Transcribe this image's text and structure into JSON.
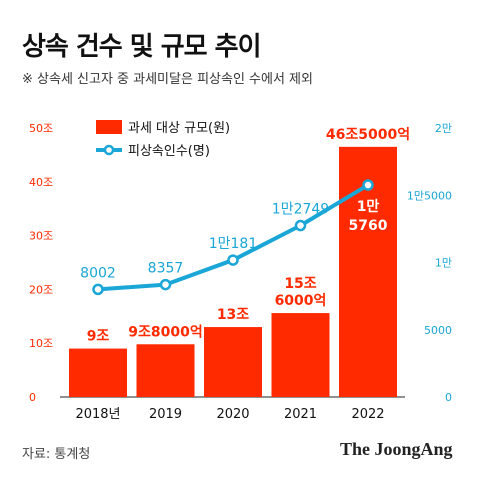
{
  "title": "상속 건수 및 규모 추이",
  "note": "※ 상속세 신고자 중 과세미달은 피상속인 수에서 제외",
  "source": "자료: 통계청",
  "brand": "The JoongAng",
  "colors": {
    "bar": "#ff2a00",
    "line": "#1aa6d6",
    "left_axis": "#ff2a00",
    "right_axis": "#1aa6d6",
    "label_dark": "#ffffff"
  },
  "chart_data": {
    "type": "bar+line",
    "categories": [
      "2018년",
      "2019",
      "2020",
      "2021",
      "2022"
    ],
    "series": [
      {
        "name": "과세 대상 규모(원)",
        "type": "bar",
        "axis": "left",
        "unit": "조원",
        "values": [
          9,
          9.8,
          13,
          15.6,
          46.5
        ],
        "labels": [
          [
            "9조"
          ],
          [
            "9조8000억"
          ],
          [
            "13조"
          ],
          [
            "15조",
            "6000억"
          ],
          [
            "46조5000억"
          ]
        ]
      },
      {
        "name": "피상속인수(명)",
        "type": "line",
        "axis": "right",
        "unit": "명",
        "values": [
          8002,
          8357,
          10181,
          12749,
          15760
        ],
        "labels": [
          [
            "8002"
          ],
          [
            "8357"
          ],
          [
            "1만181"
          ],
          [
            "1만2749"
          ],
          [
            "1만",
            "5760"
          ]
        ]
      }
    ],
    "left_axis": {
      "range": [
        0,
        50
      ],
      "ticks": [
        0,
        10,
        20,
        30,
        40,
        50
      ],
      "tick_labels": [
        "0",
        "10조",
        "20조",
        "30조",
        "40조",
        "50조"
      ]
    },
    "right_axis": {
      "range": [
        0,
        20000
      ],
      "ticks": [
        0,
        5000,
        10000,
        15000,
        20000
      ],
      "tick_labels": [
        "0",
        "5000",
        "1만",
        "1만5000",
        "2만"
      ]
    },
    "grid": false,
    "legend_position": "top-left"
  }
}
